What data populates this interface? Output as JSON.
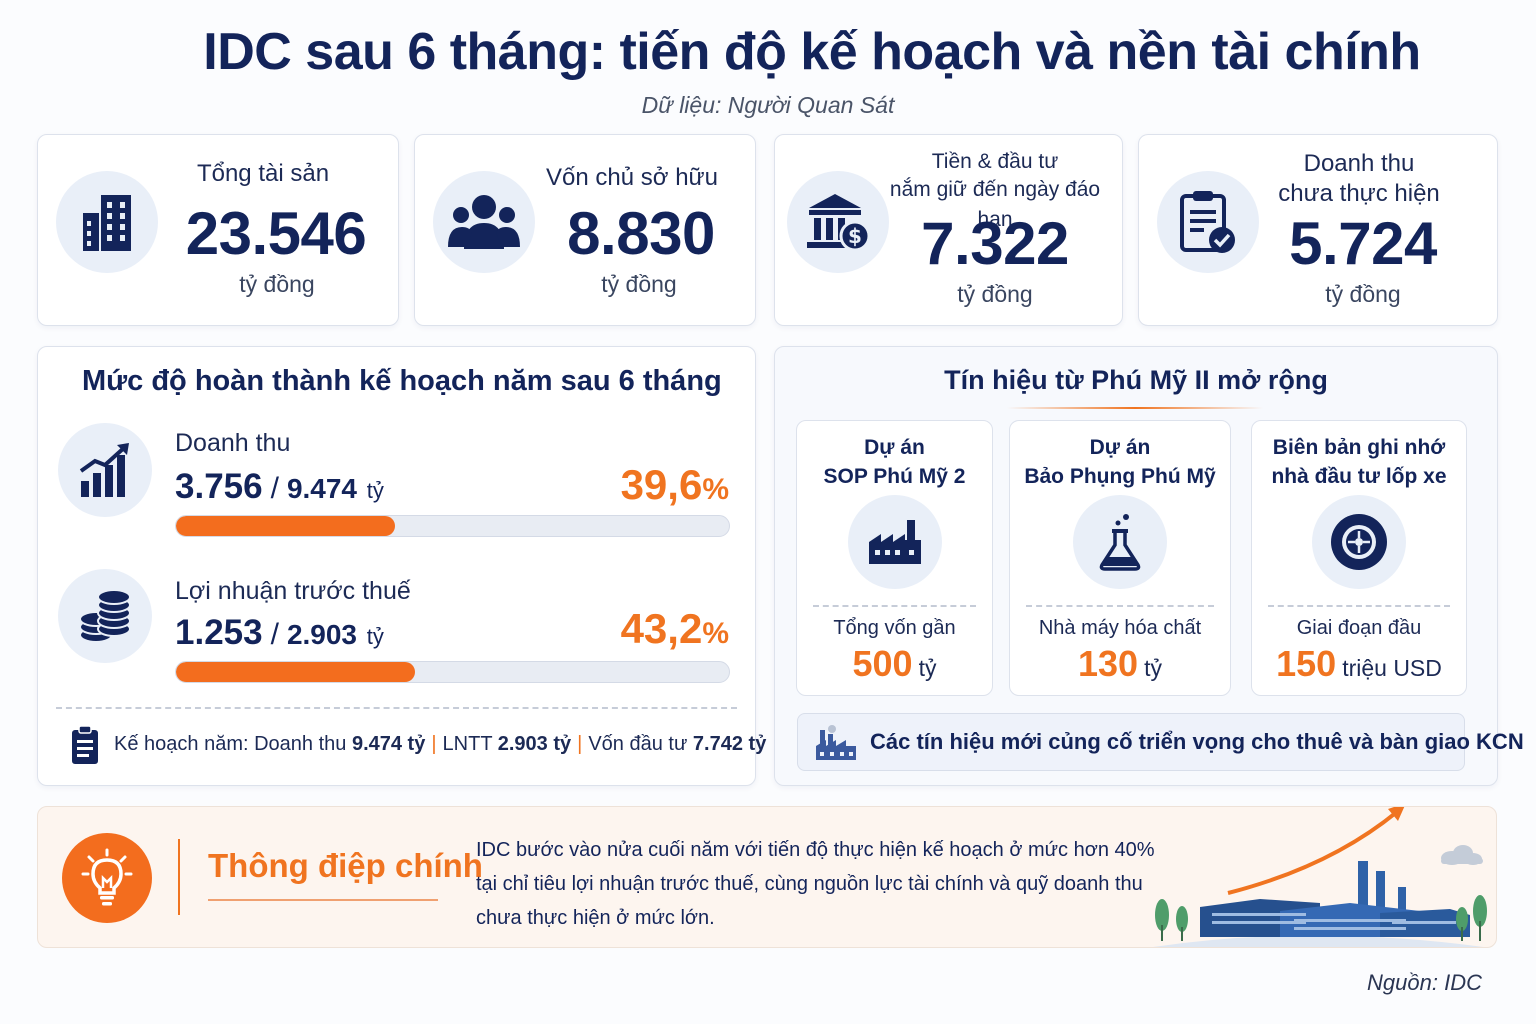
{
  "header": {
    "title": "IDC sau 6 tháng: tiến độ kế hoạch và nền tài chính",
    "subtitle": "Dữ liệu: Người Quan Sát"
  },
  "stats": [
    {
      "label": "Tổng tài sản",
      "value": "23.546",
      "unit": "tỷ đồng",
      "icon": "building-icon"
    },
    {
      "label": "Vốn chủ sở hữu",
      "value": "8.830",
      "unit": "tỷ đồng",
      "icon": "people-icon"
    },
    {
      "label_line1": "Tiền & đầu tư",
      "label_line2": "nắm giữ đến ngày đáo hạn",
      "value": "7.322",
      "unit": "tỷ đồng",
      "icon": "bank-icon"
    },
    {
      "label_line1": "Doanh thu",
      "label_line2": "chưa thực hiện",
      "value": "5.724",
      "unit": "tỷ đồng",
      "icon": "clipboard-check-icon"
    }
  ],
  "plan": {
    "title": "Mức độ hoàn thành kế hoạch năm sau 6 tháng",
    "metrics": [
      {
        "name": "Doanh thu",
        "actual": "3.756",
        "slash": "/",
        "target": "9.474",
        "unit": "tỷ",
        "pct": "39,6",
        "pct_sign": "%",
        "fraction": 0.396,
        "icon": "growth-chart-icon"
      },
      {
        "name": "Lợi nhuận trước thuế",
        "actual": "1.253",
        "slash": "/",
        "target": "2.903",
        "unit": "tỷ",
        "pct": "43,2",
        "pct_sign": "%",
        "fraction": 0.432,
        "icon": "coins-icon"
      }
    ],
    "footer": {
      "revenue_label": "Kế hoạch năm: Doanh thu",
      "revenue_value": "9.474 tỷ",
      "sep": "|",
      "profit_label": "LNTT",
      "profit_value": "2.903 tỷ",
      "invest_label": "Vốn đầu tư",
      "invest_value": "7.742 tỷ"
    }
  },
  "phumy": {
    "title": "Tín hiệu từ Phú Mỹ II mở rộng",
    "projects": [
      {
        "line1": "Dự án",
        "line2": "SOP Phú Mỹ 2",
        "caption": "Tổng vốn gần",
        "amount": "500",
        "unit": "tỷ",
        "icon": "factory-icon"
      },
      {
        "line1": "Dự án",
        "line2": "Bảo Phụng Phú Mỹ",
        "caption": "Nhà máy hóa chất",
        "amount": "130",
        "unit": "tỷ",
        "icon": "flask-icon"
      },
      {
        "line1": "Biên bản ghi nhớ",
        "line2": "nhà đầu tư lốp xe",
        "caption": "Giai đoạn đầu",
        "amount": "150",
        "unit": "triệu USD",
        "icon": "tire-icon"
      }
    ],
    "banner": "Các tín hiệu mới củng cố triển vọng cho thuê và bàn giao KCN"
  },
  "message": {
    "title": "Thông điệp chính",
    "body": "IDC bước vào nửa cuối năm với tiến độ thực hiện kế hoạch ở mức hơn 40% tại chỉ tiêu lợi nhuận trước thuế, cùng nguồn lực tài chính và quỹ doanh thu chưa thực hiện ở mức lớn."
  },
  "source": "Nguồn: IDC",
  "colors": {
    "navy": "#13245a",
    "orange": "#f07420",
    "light": "#e9eff8"
  }
}
